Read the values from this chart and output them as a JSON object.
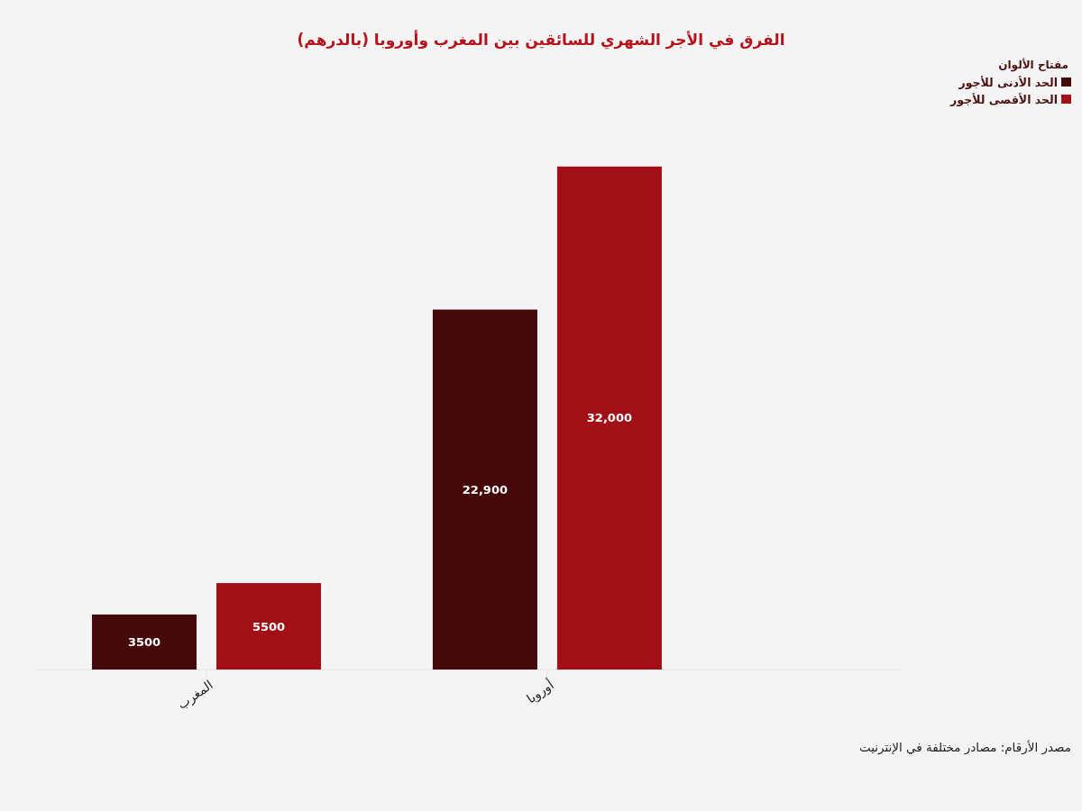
{
  "chart_data": {
    "type": "bar",
    "title": "الفرق في الأجر الشهري للسائقين بين المغرب وأوروبا (بالدرهم)",
    "categories": [
      "المغرب",
      "أوروبا"
    ],
    "series": [
      {
        "name": "الحد الأدنى للأجور",
        "color": "#450909",
        "values": [
          3500,
          22900
        ],
        "value_labels": [
          "3500",
          "22,900"
        ]
      },
      {
        "name": "الحد الأقصى للأجور",
        "color": "#a11016",
        "values": [
          5500,
          32000
        ],
        "value_labels": [
          "5500",
          "32,000"
        ]
      }
    ],
    "legend_title": "مفتاح الألوان",
    "legend": "top right",
    "tick_labels": "x",
    "annotations": [
      "مصدر الأرقام: مصادر مختلفة في الإنترنيت"
    ]
  }
}
